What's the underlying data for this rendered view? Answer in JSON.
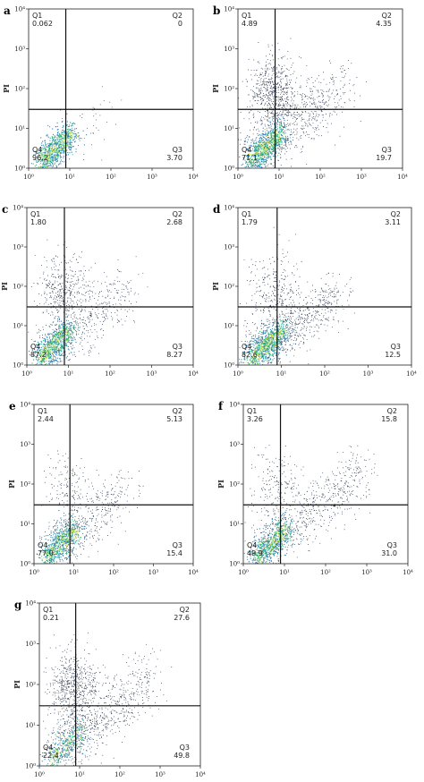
{
  "chart_data": [
    {
      "type": "scatter",
      "panel": "a",
      "ylabel": "PI",
      "x_scale": "log",
      "y_scale": "log",
      "xlim": [
        1,
        10000
      ],
      "ylim": [
        1,
        10000
      ],
      "x_ticks": [
        "10⁰",
        "10¹",
        "10²",
        "10³",
        "10⁴"
      ],
      "y_ticks": [
        "10⁰",
        "10¹",
        "10²",
        "10³",
        "10⁴"
      ],
      "gate": {
        "x": 8,
        "y": 30
      },
      "quadrants": [
        {
          "name": "Q1",
          "value": "0.062"
        },
        {
          "name": "Q2",
          "value": "0"
        },
        {
          "name": "Q3",
          "value": "3.70"
        },
        {
          "name": "Q4",
          "value": "96.2"
        }
      ]
    },
    {
      "type": "scatter",
      "panel": "b",
      "ylabel": "PI",
      "x_scale": "log",
      "y_scale": "log",
      "xlim": [
        1,
        10000
      ],
      "ylim": [
        1,
        10000
      ],
      "x_ticks": [
        "10⁰",
        "10¹",
        "10²",
        "10³",
        "10⁴"
      ],
      "y_ticks": [
        "10⁰",
        "10¹",
        "10²",
        "10³",
        "10⁴"
      ],
      "gate": {
        "x": 8,
        "y": 30
      },
      "quadrants": [
        {
          "name": "Q1",
          "value": "4.89"
        },
        {
          "name": "Q2",
          "value": "4.35"
        },
        {
          "name": "Q3",
          "value": "19.7"
        },
        {
          "name": "Q4",
          "value": "71.1"
        }
      ]
    },
    {
      "type": "scatter",
      "panel": "c",
      "ylabel": "PI",
      "x_scale": "log",
      "y_scale": "log",
      "xlim": [
        1,
        10000
      ],
      "ylim": [
        1,
        10000
      ],
      "x_ticks": [
        "10⁰",
        "10¹",
        "10²",
        "10³",
        "10⁴"
      ],
      "y_ticks": [
        "10⁰",
        "10¹",
        "10²",
        "10³",
        "10⁴"
      ],
      "gate": {
        "x": 8,
        "y": 30
      },
      "quadrants": [
        {
          "name": "Q1",
          "value": "1.80"
        },
        {
          "name": "Q2",
          "value": "2.68"
        },
        {
          "name": "Q3",
          "value": "8.27"
        },
        {
          "name": "Q4",
          "value": "87.2"
        }
      ]
    },
    {
      "type": "scatter",
      "panel": "d",
      "ylabel": "PI",
      "x_scale": "log",
      "y_scale": "log",
      "xlim": [
        1,
        10000
      ],
      "ylim": [
        1,
        10000
      ],
      "x_ticks": [
        "10⁰",
        "10¹",
        "10²",
        "10³",
        "10⁴"
      ],
      "y_ticks": [
        "10⁰",
        "10¹",
        "10²",
        "10³",
        "10⁴"
      ],
      "gate": {
        "x": 8,
        "y": 30
      },
      "quadrants": [
        {
          "name": "Q1",
          "value": "1.79"
        },
        {
          "name": "Q2",
          "value": "3.11"
        },
        {
          "name": "Q3",
          "value": "12.5"
        },
        {
          "name": "Q4",
          "value": "82.6"
        }
      ]
    },
    {
      "type": "scatter",
      "panel": "e",
      "ylabel": "PI",
      "x_scale": "log",
      "y_scale": "log",
      "xlim": [
        1,
        10000
      ],
      "ylim": [
        1,
        10000
      ],
      "x_ticks": [
        "10⁰",
        "10¹",
        "10²",
        "10³",
        "10⁴"
      ],
      "y_ticks": [
        "10⁰",
        "10¹",
        "10²",
        "10³",
        "10⁴"
      ],
      "gate": {
        "x": 8,
        "y": 30
      },
      "quadrants": [
        {
          "name": "Q1",
          "value": "2.44"
        },
        {
          "name": "Q2",
          "value": "5.13"
        },
        {
          "name": "Q3",
          "value": "15.4"
        },
        {
          "name": "Q4",
          "value": "77.0"
        }
      ]
    },
    {
      "type": "scatter",
      "panel": "f",
      "ylabel": "PI",
      "x_scale": "log",
      "y_scale": "log",
      "xlim": [
        1,
        10000
      ],
      "ylim": [
        1,
        10000
      ],
      "x_ticks": [
        "10⁰",
        "10¹",
        "10²",
        "10³",
        "10⁴"
      ],
      "y_ticks": [
        "10⁰",
        "10¹",
        "10²",
        "10³",
        "10⁴"
      ],
      "gate": {
        "x": 8,
        "y": 30
      },
      "quadrants": [
        {
          "name": "Q1",
          "value": "3.26"
        },
        {
          "name": "Q2",
          "value": "15.8"
        },
        {
          "name": "Q3",
          "value": "31.0"
        },
        {
          "name": "Q4",
          "value": "49.9"
        }
      ]
    },
    {
      "type": "scatter",
      "panel": "g",
      "ylabel": "PI",
      "x_scale": "log",
      "y_scale": "log",
      "xlim": [
        1,
        10000
      ],
      "ylim": [
        1,
        10000
      ],
      "x_ticks": [
        "10⁰",
        "10¹",
        "10²",
        "10³",
        "10⁴"
      ],
      "y_ticks": [
        "10⁰",
        "10¹",
        "10²",
        "10³",
        "10⁴"
      ],
      "gate": {
        "x": 8,
        "y": 30
      },
      "quadrants": [
        {
          "name": "Q1",
          "value": "0.21"
        },
        {
          "name": "Q2",
          "value": "27.6"
        },
        {
          "name": "Q3",
          "value": "49.8"
        },
        {
          "name": "Q4",
          "value": "22.4"
        }
      ]
    }
  ],
  "colors": {
    "axis": "#222222",
    "gate": "#111111",
    "sparse": "#1f2a44",
    "dense_low": "#2a7fb0",
    "dense_mid": "#2fbf7a",
    "dense_high": "#d6e85a",
    "dense_peak": "#ffffff"
  }
}
